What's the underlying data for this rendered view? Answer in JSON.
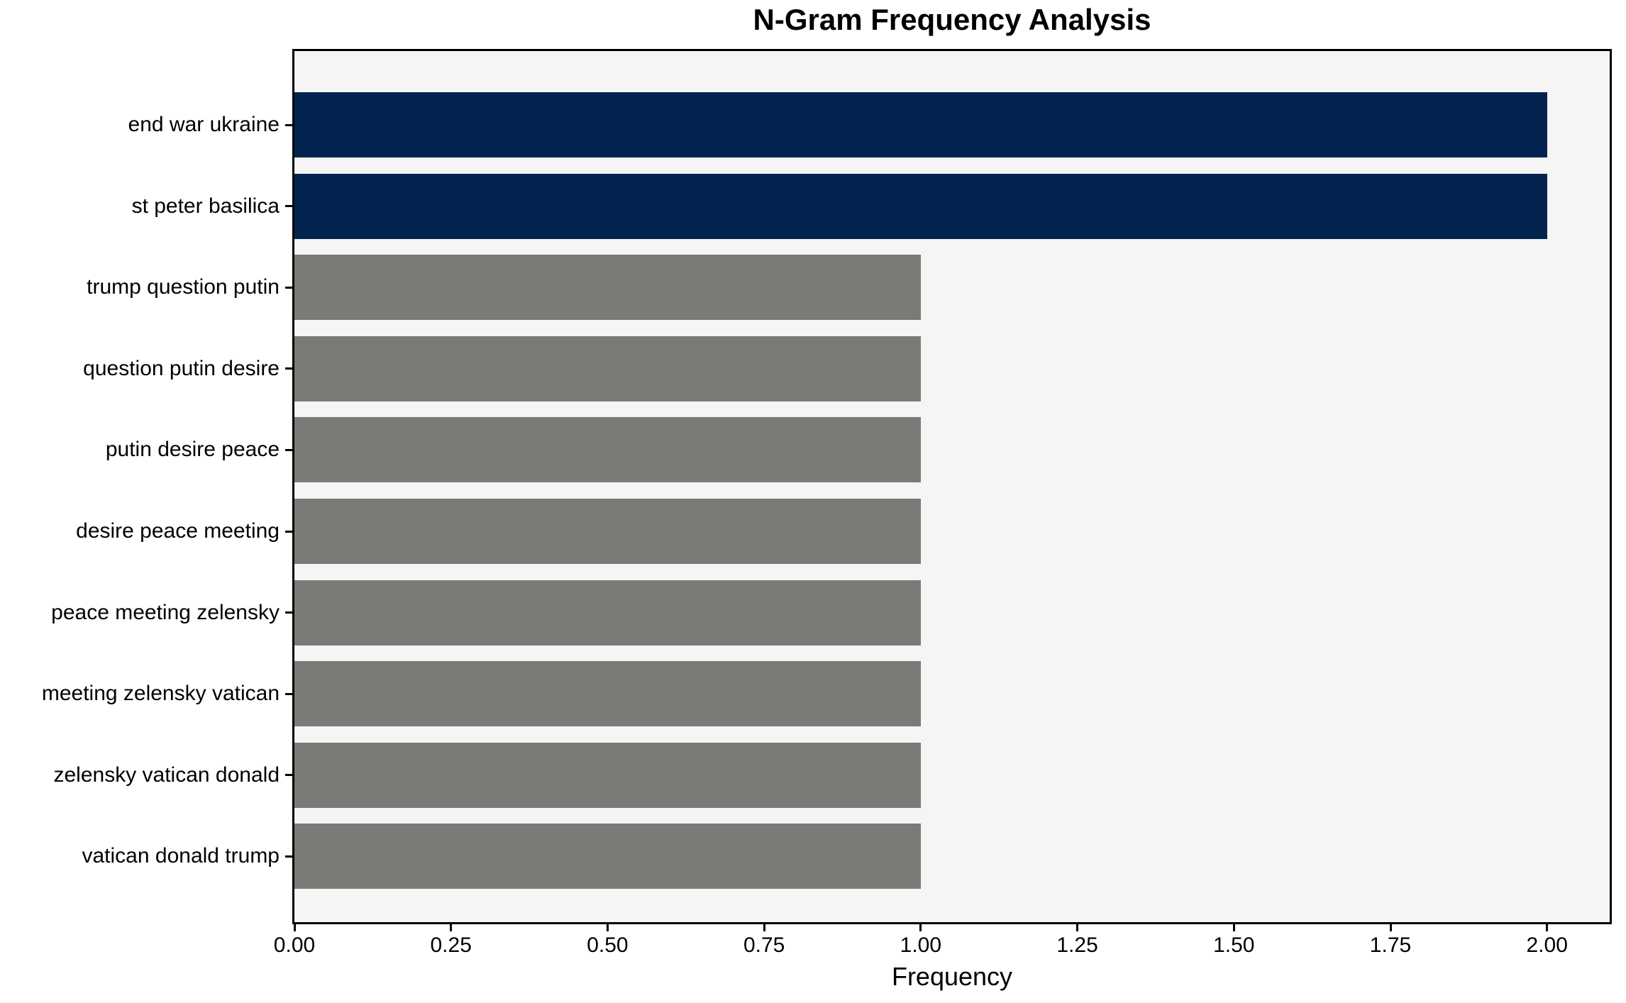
{
  "chart_data": {
    "type": "bar",
    "orientation": "horizontal",
    "title": "N-Gram Frequency Analysis",
    "xlabel": "Frequency",
    "ylabel": "",
    "categories": [
      "end war ukraine",
      "st peter basilica",
      "trump question putin",
      "question putin desire",
      "putin desire peace",
      "desire peace meeting",
      "peace meeting zelensky",
      "meeting zelensky vatican",
      "zelensky vatican donald",
      "vatican donald trump"
    ],
    "values": [
      2,
      2,
      1,
      1,
      1,
      1,
      1,
      1,
      1,
      1
    ],
    "bar_colors": [
      "#02244e",
      "#02244e",
      "#7b7a77",
      "#7b7a77",
      "#7b7a77",
      "#7b7a77",
      "#7b7a77",
      "#7b7a77",
      "#7b7a77",
      "#7b7a77"
    ],
    "xlim": [
      0,
      2.1
    ],
    "xticks": [
      0,
      0.25,
      0.5,
      0.75,
      1.0,
      1.25,
      1.5,
      1.75,
      2.0
    ],
    "xtick_labels": [
      "0.00",
      "0.25",
      "0.50",
      "0.75",
      "1.00",
      "1.25",
      "1.50",
      "1.75",
      "2.00"
    ],
    "grid": false,
    "legend_position": "none",
    "colors": {
      "highlight_bar": "#02244e",
      "default_bar": "#7b7a77",
      "plot_background": "#f6f5f6",
      "figure_background": "#ffffff",
      "spine": "#000000",
      "text": "#000000"
    }
  }
}
